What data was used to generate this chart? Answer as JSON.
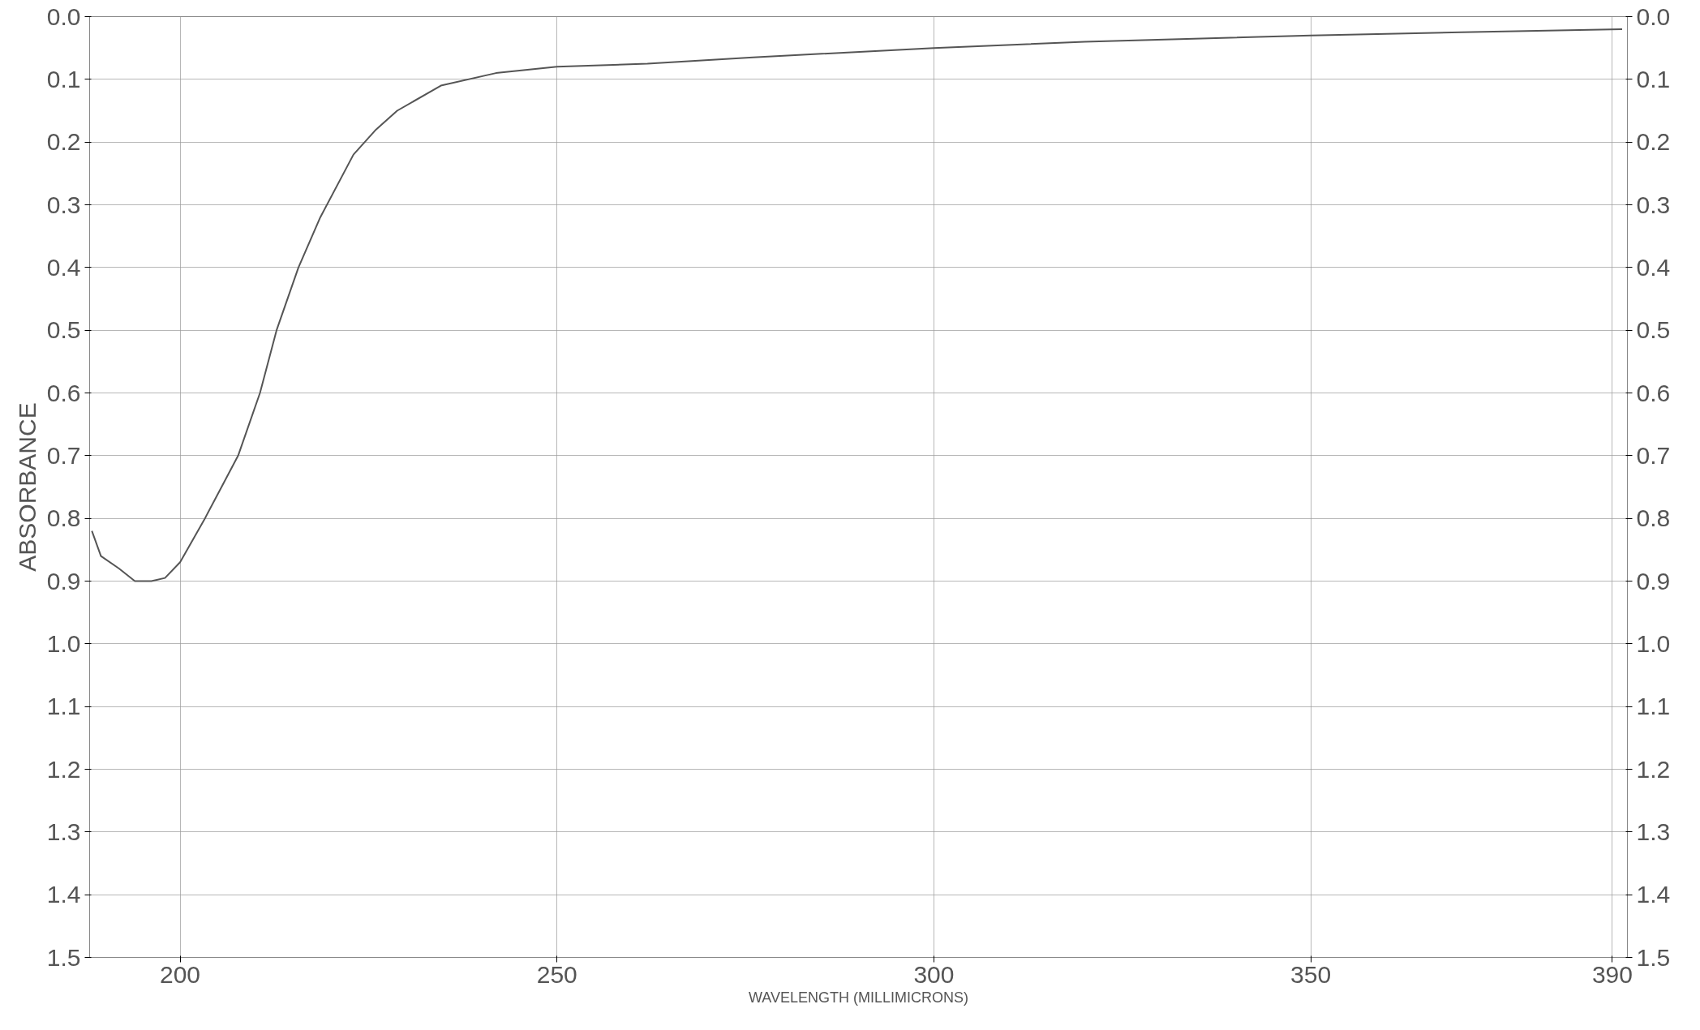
{
  "chart_data": {
    "type": "line",
    "xlabel": "WAVELENGTH (MILLIMICRONS)",
    "ylabel": "ABSORBANCE",
    "x": [
      188.3,
      189.5,
      191.9,
      194,
      196.2,
      198,
      200,
      203.3,
      205.5,
      207.7,
      210.6,
      212.8,
      215.7,
      218.6,
      223,
      226,
      228.8,
      234.6,
      241.9,
      250,
      262,
      276,
      300,
      320,
      350,
      370,
      391.3
    ],
    "series": [
      {
        "color": "#555555",
        "values": [
          0.82,
          0.86,
          0.88,
          0.9,
          0.9,
          0.895,
          0.87,
          0.8,
          0.75,
          0.7,
          0.6,
          0.5,
          0.4,
          0.32,
          0.22,
          0.18,
          0.15,
          0.11,
          0.09,
          0.08,
          0.075,
          0.065,
          0.05,
          0.04,
          0.03,
          0.025,
          0.02
        ]
      }
    ],
    "xlim": [
      188,
      392
    ],
    "xticks": [
      200,
      250,
      300,
      350,
      390
    ],
    "ylim": [
      1.5,
      0
    ],
    "yticks": [
      {
        "value": 0,
        "label": "0.0"
      },
      0.1,
      0.2,
      0.3,
      0.4,
      0.5,
      0.6,
      0.7,
      0.8,
      0.9,
      {
        "value": 1,
        "label": "1.0"
      },
      1.1,
      1.2,
      1.3,
      1.4,
      1.5
    ],
    "y2lim": [
      1.5,
      0
    ],
    "y2ticks": [
      {
        "value": 0,
        "label": "0.0"
      },
      0.1,
      0.2,
      0.3,
      0.4,
      0.5,
      0.6,
      0.7,
      0.8,
      0.9,
      {
        "value": 1,
        "label": "1.0"
      },
      1.1,
      1.2,
      1.3,
      1.4,
      1.5
    ],
    "grid": true,
    "marker": "none",
    "line_style": "solid"
  }
}
